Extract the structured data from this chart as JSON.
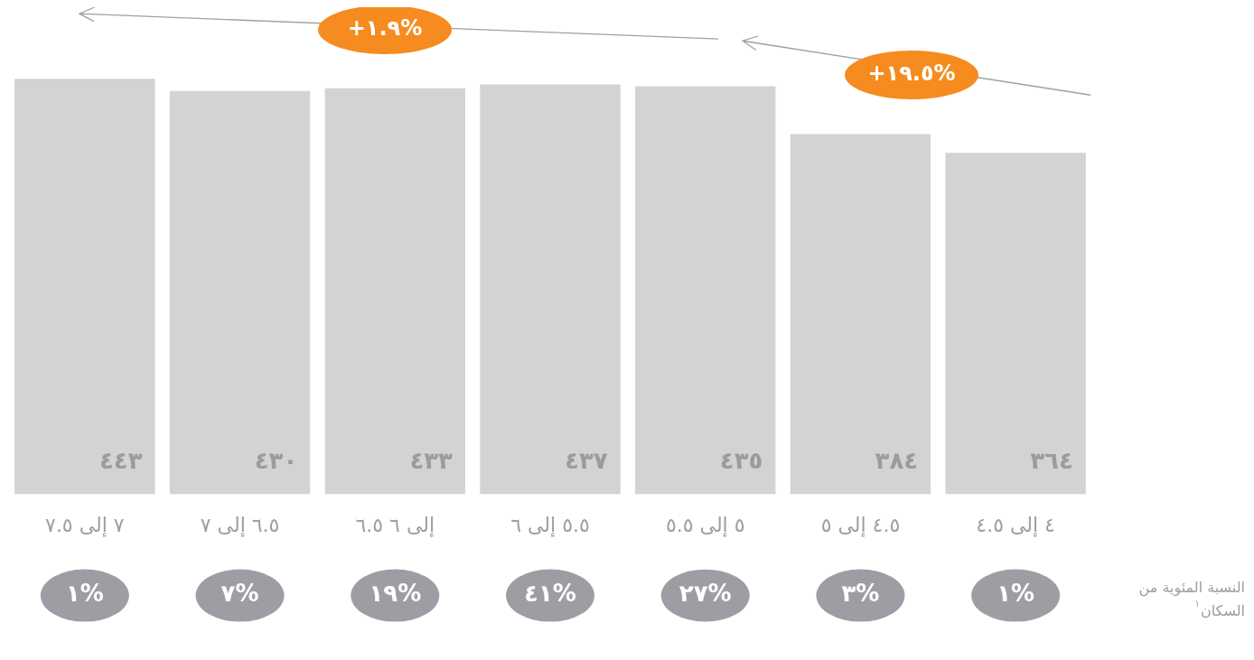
{
  "chart_data": {
    "type": "bar",
    "categories": [
      "٧ إلى ٧.٥",
      "٦.٥ إلى ٧",
      "إلى ٦ ٦.٥",
      "٥.٥ إلى ٦",
      "٥ إلى ٥.٥",
      "٤.٥ إلى ٥",
      "٤ إلى ٤.٥"
    ],
    "values": [
      443,
      430,
      433,
      437,
      435,
      384,
      364
    ],
    "value_labels": [
      "٤٤٣",
      "٤٣٠",
      "٤٣٣",
      "٤٣٧",
      "٤٣٥",
      "٣٨٤",
      "٣٦٤"
    ],
    "color": "#d3d3d3",
    "tick_labels": "x",
    "grid": false,
    "legend": false,
    "annotations": [
      "+١.٩%",
      "+١٩.٥%",
      "النسبة المئوية من السكان$^{١}$",
      "١%",
      "٧%",
      "١٩%",
      "٤١%",
      "٢٧%",
      "٣%",
      "١%"
    ]
  }
}
